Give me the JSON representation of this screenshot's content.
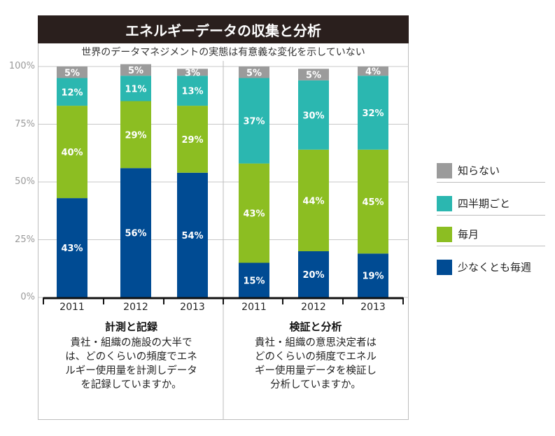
{
  "title": "エネルギーデータの収集と分析",
  "subtitle": "世界のデータマネジメントの実態は有意義な変化を示していない",
  "chart_data": {
    "type": "bar",
    "stacked": true,
    "percent": true,
    "ylim": [
      0,
      100
    ],
    "yticks": [
      "0%",
      "25%",
      "50%",
      "75%",
      "100%"
    ],
    "categories": [
      "2011",
      "2012",
      "2013",
      "2011",
      "2012",
      "2013"
    ],
    "groups": [
      {
        "name": "計測と記録",
        "question": [
          "貴社・組織の施設の大半で",
          "は、どのくらいの頻度でエネ",
          "ルギー使用量を計測しデータ",
          "を記録していますか。"
        ]
      },
      {
        "name": "検証と分析",
        "question": [
          "貴社・組織の意思決定者は",
          "どのくらいの頻度でエネル",
          "ギー使用量データを検証し",
          "分析していますか。"
        ]
      }
    ],
    "series": [
      {
        "name": "少なくとも毎週",
        "color": "#004b93",
        "values": [
          43,
          56,
          54,
          15,
          20,
          19
        ]
      },
      {
        "name": "毎月",
        "color": "#8cbe22",
        "values": [
          40,
          29,
          29,
          43,
          44,
          45
        ]
      },
      {
        "name": "四半期ごと",
        "color": "#2bb7b0",
        "values": [
          12,
          11,
          13,
          37,
          30,
          32
        ]
      },
      {
        "name": "知らない",
        "color": "#9b9b9b",
        "values": [
          5,
          5,
          3,
          5,
          5,
          4
        ]
      }
    ],
    "legend_order": [
      "知らない",
      "四半期ごと",
      "毎月",
      "少なくとも毎週"
    ]
  }
}
